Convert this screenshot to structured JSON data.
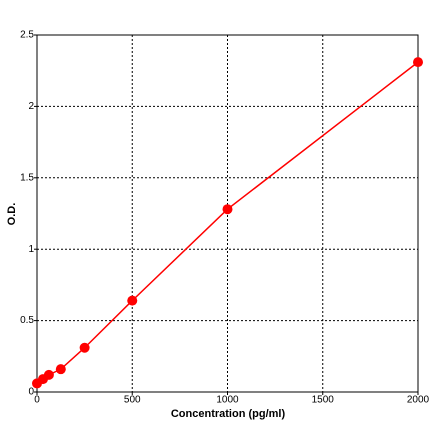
{
  "chart_data": {
    "type": "line",
    "xlabel": "Concentration (pg/ml)",
    "ylabel": "O.D.",
    "x": [
      0,
      31.25,
      62.5,
      125,
      250,
      500,
      1000,
      2000
    ],
    "values": [
      0.06,
      0.09,
      0.12,
      0.16,
      0.31,
      0.64,
      1.28,
      2.31
    ],
    "color": "#ff0000",
    "xlim": [
      0,
      2000
    ],
    "xticks": [
      0,
      500,
      1000,
      1500,
      2000
    ],
    "ylim": [
      0,
      2.5
    ],
    "yticks": [
      0,
      0.5,
      1,
      1.5,
      2,
      2.5
    ],
    "grid": true
  }
}
